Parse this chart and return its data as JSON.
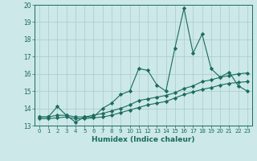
{
  "title": "",
  "xlabel": "Humidex (Indice chaleur)",
  "xlim": [
    -0.5,
    23.5
  ],
  "ylim": [
    13,
    20
  ],
  "yticks": [
    13,
    14,
    15,
    16,
    17,
    18,
    19,
    20
  ],
  "xticks": [
    0,
    1,
    2,
    3,
    4,
    5,
    6,
    7,
    8,
    9,
    10,
    11,
    12,
    13,
    14,
    15,
    16,
    17,
    18,
    19,
    20,
    21,
    22,
    23
  ],
  "bg_color": "#cce8e8",
  "line_color": "#1a6b5e",
  "grid_color": "#aacaca",
  "series": [
    [
      13.5,
      13.5,
      14.1,
      13.6,
      13.2,
      13.5,
      13.5,
      14.0,
      14.3,
      14.8,
      15.0,
      16.3,
      16.2,
      15.35,
      15.0,
      17.5,
      19.8,
      17.2,
      18.3,
      16.3,
      15.8,
      16.1,
      15.3,
      15.0
    ],
    [
      13.5,
      13.5,
      13.6,
      13.6,
      13.5,
      13.5,
      13.6,
      13.7,
      13.85,
      14.0,
      14.2,
      14.45,
      14.55,
      14.65,
      14.75,
      14.9,
      15.15,
      15.3,
      15.55,
      15.65,
      15.8,
      15.9,
      16.0,
      16.05
    ],
    [
      13.4,
      13.4,
      13.45,
      13.5,
      13.4,
      13.4,
      13.45,
      13.5,
      13.6,
      13.75,
      13.9,
      14.05,
      14.2,
      14.3,
      14.4,
      14.6,
      14.8,
      14.95,
      15.1,
      15.2,
      15.35,
      15.45,
      15.5,
      15.55
    ]
  ]
}
